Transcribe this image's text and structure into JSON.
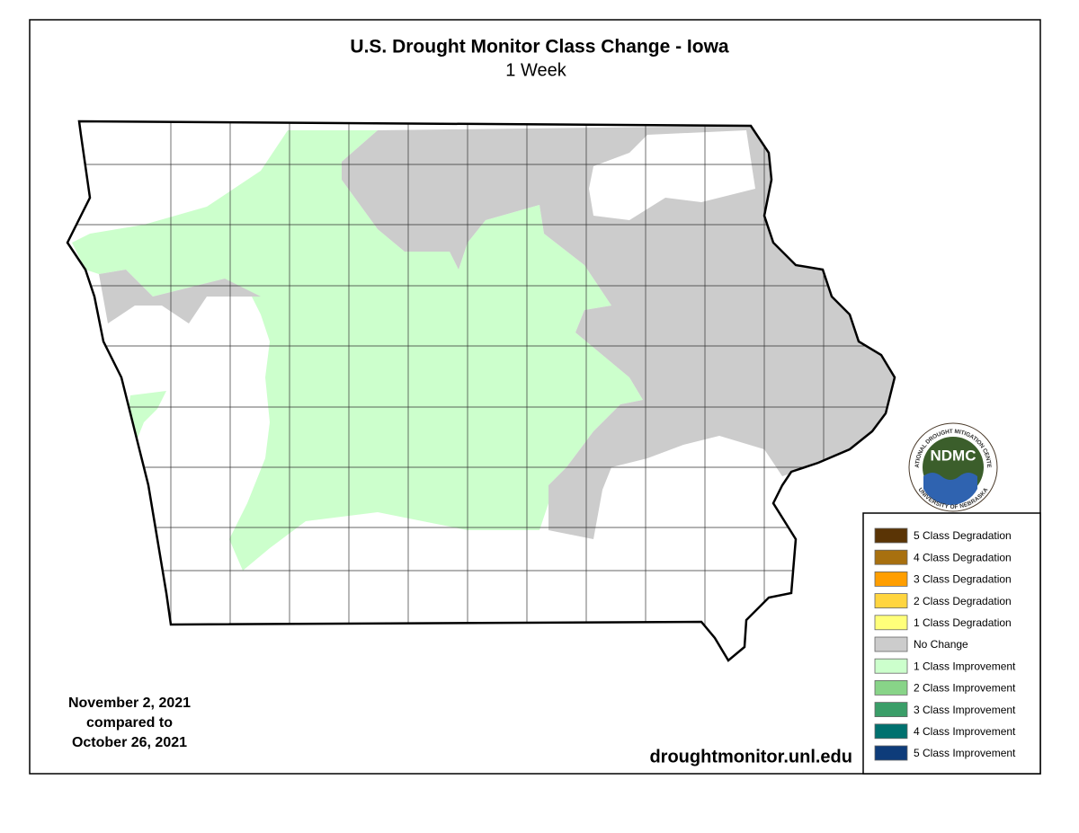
{
  "header": {
    "title": "U.S. Drought Monitor Class Change - Iowa",
    "subtitle": "1 Week"
  },
  "dates": {
    "line1": "November 2, 2021",
    "line2": "compared to",
    "line3": "October 26, 2021"
  },
  "source": "droughtmonitor.unl.edu",
  "logo": {
    "name": "NDMC",
    "top_text": "NATIONAL DROUGHT MITIGATION CENTER",
    "bottom_text": "UNIVERSITY OF NEBRASKA"
  },
  "legend": {
    "items": [
      {
        "label": "5 Class Degradation",
        "color": "#5a3405"
      },
      {
        "label": "4 Class Degradation",
        "color": "#a8700f"
      },
      {
        "label": "3 Class Degradation",
        "color": "#ff9e00"
      },
      {
        "label": "2 Class Degradation",
        "color": "#ffd53f"
      },
      {
        "label": "1 Class Degradation",
        "color": "#ffff7a"
      },
      {
        "label": "No Change",
        "color": "#cccccc"
      },
      {
        "label": "1 Class Improvement",
        "color": "#ccffcc"
      },
      {
        "label": "2 Class Improvement",
        "color": "#88d488"
      },
      {
        "label": "3 Class Improvement",
        "color": "#3a9e68"
      },
      {
        "label": "4 Class Improvement",
        "color": "#00716f"
      },
      {
        "label": "5 Class Improvement",
        "color": "#0e3c7a"
      }
    ]
  }
}
